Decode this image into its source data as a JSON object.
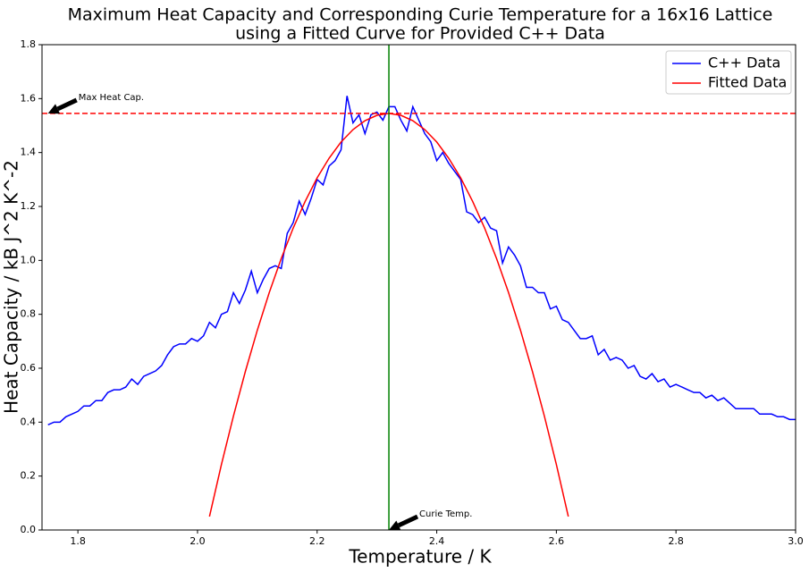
{
  "chart_data": {
    "type": "line",
    "title": [
      "Maximum Heat Capacity and Corresponding Curie Temperature for a 16x16 Lattice",
      "using a Fitted Curve for Provided C++ Data"
    ],
    "xlabel": "Temperature / K",
    "ylabel": "Heat Capacity / kB J^2 K^-2",
    "xlim": [
      1.74,
      3.0
    ],
    "ylim": [
      0,
      1.8
    ],
    "xticks": [
      1.8,
      {
        "value": 2,
        "label": "2.0"
      },
      2.2,
      2.4,
      2.6,
      2.8,
      {
        "value": 3,
        "label": "3.0"
      }
    ],
    "yticks": [
      {
        "value": 0,
        "label": "0.0"
      },
      0.2,
      0.4,
      0.6,
      0.8,
      {
        "value": 1,
        "label": "1.0"
      },
      1.2,
      1.4,
      1.6,
      1.8
    ],
    "legend": "upper right",
    "series": [
      {
        "name": "C++ Data",
        "color": "#0000ff",
        "x": [
          1.75,
          1.76,
          1.77,
          1.78,
          1.79,
          1.8,
          1.81,
          1.82,
          1.83,
          1.84,
          1.85,
          1.86,
          1.87,
          1.88,
          1.89,
          1.9,
          1.91,
          1.92,
          1.93,
          1.94,
          1.95,
          1.96,
          1.97,
          1.98,
          1.99,
          2.0,
          2.01,
          2.02,
          2.03,
          2.04,
          2.05,
          2.06,
          2.07,
          2.08,
          2.09,
          2.1,
          2.11,
          2.12,
          2.13,
          2.14,
          2.15,
          2.16,
          2.17,
          2.18,
          2.19,
          2.2,
          2.21,
          2.22,
          2.23,
          2.24,
          2.25,
          2.26,
          2.27,
          2.28,
          2.29,
          2.3,
          2.31,
          2.32,
          2.33,
          2.34,
          2.35,
          2.36,
          2.37,
          2.38,
          2.39,
          2.4,
          2.41,
          2.42,
          2.43,
          2.44,
          2.45,
          2.46,
          2.47,
          2.48,
          2.49,
          2.5,
          2.51,
          2.52,
          2.53,
          2.54,
          2.55,
          2.56,
          2.57,
          2.58,
          2.59,
          2.6,
          2.61,
          2.62,
          2.63,
          2.64,
          2.65,
          2.66,
          2.67,
          2.68,
          2.69,
          2.7,
          2.71,
          2.72,
          2.73,
          2.74,
          2.75,
          2.76,
          2.77,
          2.78,
          2.79,
          2.8,
          2.81,
          2.82,
          2.83,
          2.84,
          2.85,
          2.86,
          2.87,
          2.88,
          2.89,
          2.9,
          2.91,
          2.92,
          2.93,
          2.94,
          2.95,
          2.96,
          2.97,
          2.98,
          2.99,
          3.0
        ],
        "values": [
          0.39,
          0.4,
          0.4,
          0.42,
          0.43,
          0.44,
          0.46,
          0.46,
          0.48,
          0.48,
          0.51,
          0.52,
          0.52,
          0.53,
          0.56,
          0.54,
          0.57,
          0.58,
          0.59,
          0.61,
          0.65,
          0.68,
          0.69,
          0.69,
          0.71,
          0.7,
          0.72,
          0.77,
          0.75,
          0.8,
          0.81,
          0.88,
          0.84,
          0.89,
          0.96,
          0.88,
          0.93,
          0.97,
          0.98,
          0.97,
          1.1,
          1.14,
          1.22,
          1.17,
          1.23,
          1.3,
          1.28,
          1.35,
          1.37,
          1.41,
          1.61,
          1.51,
          1.54,
          1.47,
          1.54,
          1.55,
          1.52,
          1.57,
          1.57,
          1.52,
          1.48,
          1.57,
          1.52,
          1.47,
          1.44,
          1.37,
          1.4,
          1.36,
          1.33,
          1.3,
          1.18,
          1.17,
          1.14,
          1.16,
          1.12,
          1.11,
          0.99,
          1.05,
          1.02,
          0.98,
          0.9,
          0.9,
          0.88,
          0.88,
          0.82,
          0.83,
          0.78,
          0.77,
          0.74,
          0.71,
          0.71,
          0.72,
          0.65,
          0.67,
          0.63,
          0.64,
          0.63,
          0.6,
          0.61,
          0.57,
          0.56,
          0.58,
          0.55,
          0.56,
          0.53,
          0.54,
          0.53,
          0.52,
          0.51,
          0.51,
          0.49,
          0.5,
          0.48,
          0.49,
          0.47,
          0.45,
          0.45,
          0.45,
          0.45,
          0.43,
          0.43,
          0.43,
          0.42,
          0.42,
          0.41,
          0.41
        ]
      },
      {
        "name": "Fitted Data",
        "color": "#ff0000",
        "x": [
          2.02,
          2.04,
          2.06,
          2.08,
          2.1,
          2.12,
          2.14,
          2.16,
          2.18,
          2.2,
          2.22,
          2.24,
          2.26,
          2.28,
          2.3,
          2.32,
          2.34,
          2.36,
          2.38,
          2.4,
          2.42,
          2.44,
          2.46,
          2.48,
          2.5,
          2.52,
          2.54,
          2.56,
          2.58,
          2.6,
          2.62
        ],
        "values": [
          0.05,
          0.243,
          0.422,
          0.588,
          0.741,
          0.881,
          1.007,
          1.12,
          1.219,
          1.306,
          1.379,
          1.439,
          1.485,
          1.518,
          1.538,
          1.545,
          1.538,
          1.518,
          1.485,
          1.439,
          1.379,
          1.306,
          1.219,
          1.12,
          1.007,
          0.881,
          0.741,
          0.588,
          0.422,
          0.243,
          0.05
        ]
      }
    ],
    "hline": {
      "value": 1.545,
      "color": "#ff0000"
    },
    "vline": {
      "value": 2.32,
      "color": "#008000"
    },
    "annotations": [
      {
        "text": "Max Heat Cap.",
        "x": 1.75,
        "y": 1.545
      },
      {
        "text": "Curie Temp.",
        "x": 2.32,
        "y": 0
      }
    ]
  }
}
